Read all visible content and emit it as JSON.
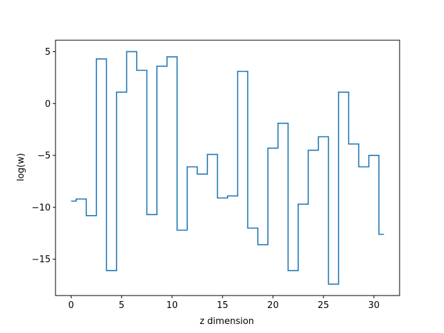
{
  "chart_data": {
    "type": "line",
    "drawstyle": "steps-mid",
    "xlabel": "z dimension",
    "ylabel": "log(w)",
    "xlim": [
      -1.55,
      32.55
    ],
    "ylim": [
      -18.5,
      6.1
    ],
    "xticks": [
      0,
      5,
      10,
      15,
      20,
      25,
      30
    ],
    "yticks": [
      5,
      0,
      -5,
      -10,
      -15
    ],
    "tick_labels": {
      "x": [
        "0",
        "5",
        "10",
        "15",
        "20",
        "25",
        "30"
      ],
      "y": [
        "5",
        "0",
        "−5",
        "−10",
        "−15"
      ]
    },
    "grid": false,
    "legend": "none",
    "line_color": "#1f77b4",
    "series": [
      {
        "x": [
          0,
          1,
          2,
          3,
          4,
          5,
          6,
          7,
          8,
          9,
          10,
          11,
          12,
          13,
          14,
          15,
          16,
          17,
          18,
          19,
          20,
          21,
          22,
          23,
          24,
          25,
          26,
          27,
          28,
          29,
          30,
          31
        ],
        "values": [
          -9.4,
          -9.2,
          -10.8,
          4.3,
          -16.1,
          1.1,
          5.0,
          3.2,
          -10.7,
          3.6,
          4.5,
          -12.2,
          -6.1,
          -6.8,
          -4.9,
          -9.1,
          -8.9,
          3.1,
          -12.0,
          -13.6,
          -4.3,
          -1.9,
          -16.1,
          -9.7,
          -4.5,
          -3.2,
          -17.4,
          1.1,
          -3.9,
          -6.1,
          -5.0,
          -12.6
        ]
      }
    ]
  }
}
